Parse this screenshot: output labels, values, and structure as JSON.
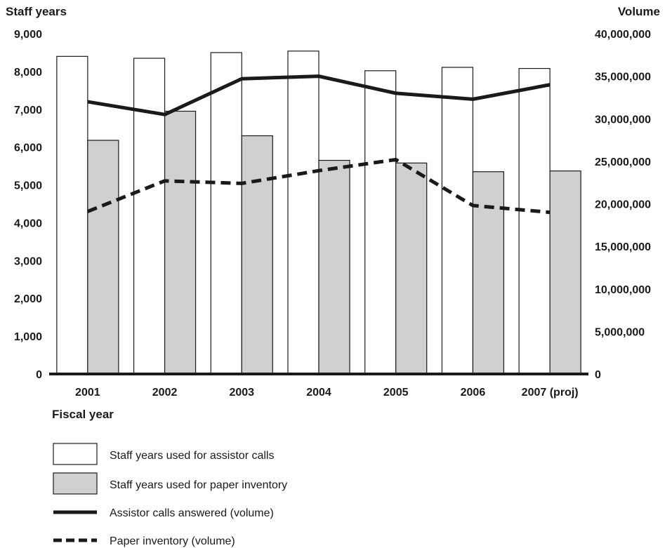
{
  "chart_data": {
    "type": "bar",
    "left_axis_title": "Staff years",
    "right_axis_title": "Volume",
    "x_axis_title": "Fiscal year",
    "categories": [
      "2001",
      "2002",
      "2003",
      "2004",
      "2005",
      "2006",
      "2007 (proj)"
    ],
    "left_ylim": [
      0,
      9000
    ],
    "left_ticks": [
      "0",
      "1,000",
      "2,000",
      "3,000",
      "4,000",
      "5,000",
      "6,000",
      "7,000",
      "8,000",
      "9,000"
    ],
    "right_ylim": [
      0,
      40000000
    ],
    "right_ticks": [
      "0",
      "5,000,000",
      "10,000,000",
      "15,000,000",
      "20,000,000",
      "25,000,000",
      "30,000,000",
      "35,000,000",
      "40,000,000"
    ],
    "series": [
      {
        "name": "Staff years used for assistor calls",
        "kind": "bar",
        "axis": "left",
        "fill": "#ffffff",
        "values": [
          8400,
          8350,
          8500,
          8540,
          8020,
          8110,
          8080
        ]
      },
      {
        "name": "Staff years used for paper inventory",
        "kind": "bar",
        "axis": "left",
        "fill": "#d0d0d0",
        "values": [
          6180,
          6950,
          6300,
          5650,
          5580,
          5350,
          5370
        ]
      },
      {
        "name": "Assistor calls answered (volume)",
        "kind": "line",
        "axis": "right",
        "style": "solid",
        "values": [
          32000000,
          30500000,
          34700000,
          35000000,
          33000000,
          32300000,
          34000000
        ]
      },
      {
        "name": "Paper inventory (volume)",
        "kind": "line",
        "axis": "right",
        "style": "dashed",
        "values": [
          19100000,
          22700000,
          22400000,
          23900000,
          25200000,
          19800000,
          19000000
        ]
      }
    ],
    "grid": false,
    "legend_position": "bottom-left"
  }
}
